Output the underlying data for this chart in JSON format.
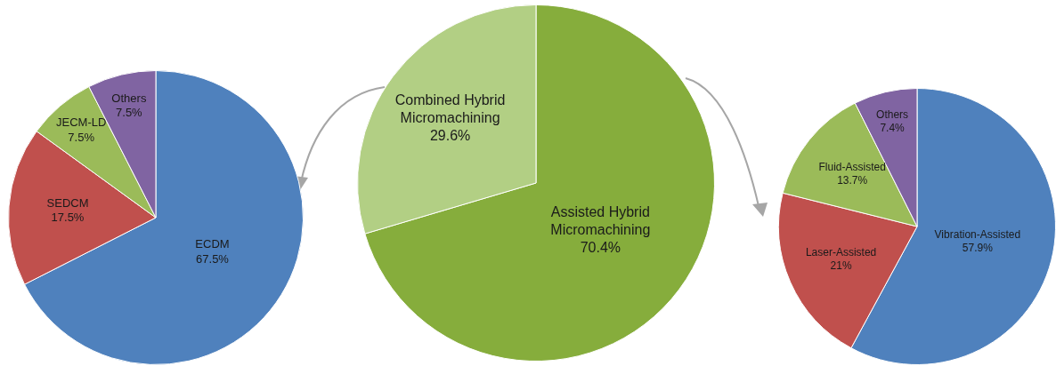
{
  "chart_data": [
    {
      "type": "pie",
      "categories": [
        "ECDM",
        "SEDCM",
        "JECM-LD",
        "Others"
      ],
      "values": [
        67.5,
        17.5,
        7.5,
        7.5
      ],
      "value_labels": [
        "67.5%",
        "17.5%",
        "7.5%",
        "7.5%"
      ],
      "colors": [
        "#4f81bd",
        "#c0504d",
        "#9bbb59",
        "#8064a2"
      ]
    },
    {
      "type": "pie",
      "categories": [
        "Assisted Hybrid Micromachining",
        "Combined Hybrid Micromachining"
      ],
      "values": [
        70.4,
        29.6
      ],
      "value_labels": [
        "70.4%",
        "29.6%"
      ],
      "colors": [
        "#86ad3c",
        "#b2cf84"
      ]
    },
    {
      "type": "pie",
      "categories": [
        "Vibration-Assisted",
        "Laser-Assisted",
        "Fluid-Assisted",
        "Others"
      ],
      "values": [
        57.9,
        21,
        13.7,
        7.4
      ],
      "value_labels": [
        "57.9%",
        "21%",
        "13.7%",
        "7.4%"
      ],
      "colors": [
        "#4f81bd",
        "#c0504d",
        "#9bbb59",
        "#8064a2"
      ]
    }
  ]
}
